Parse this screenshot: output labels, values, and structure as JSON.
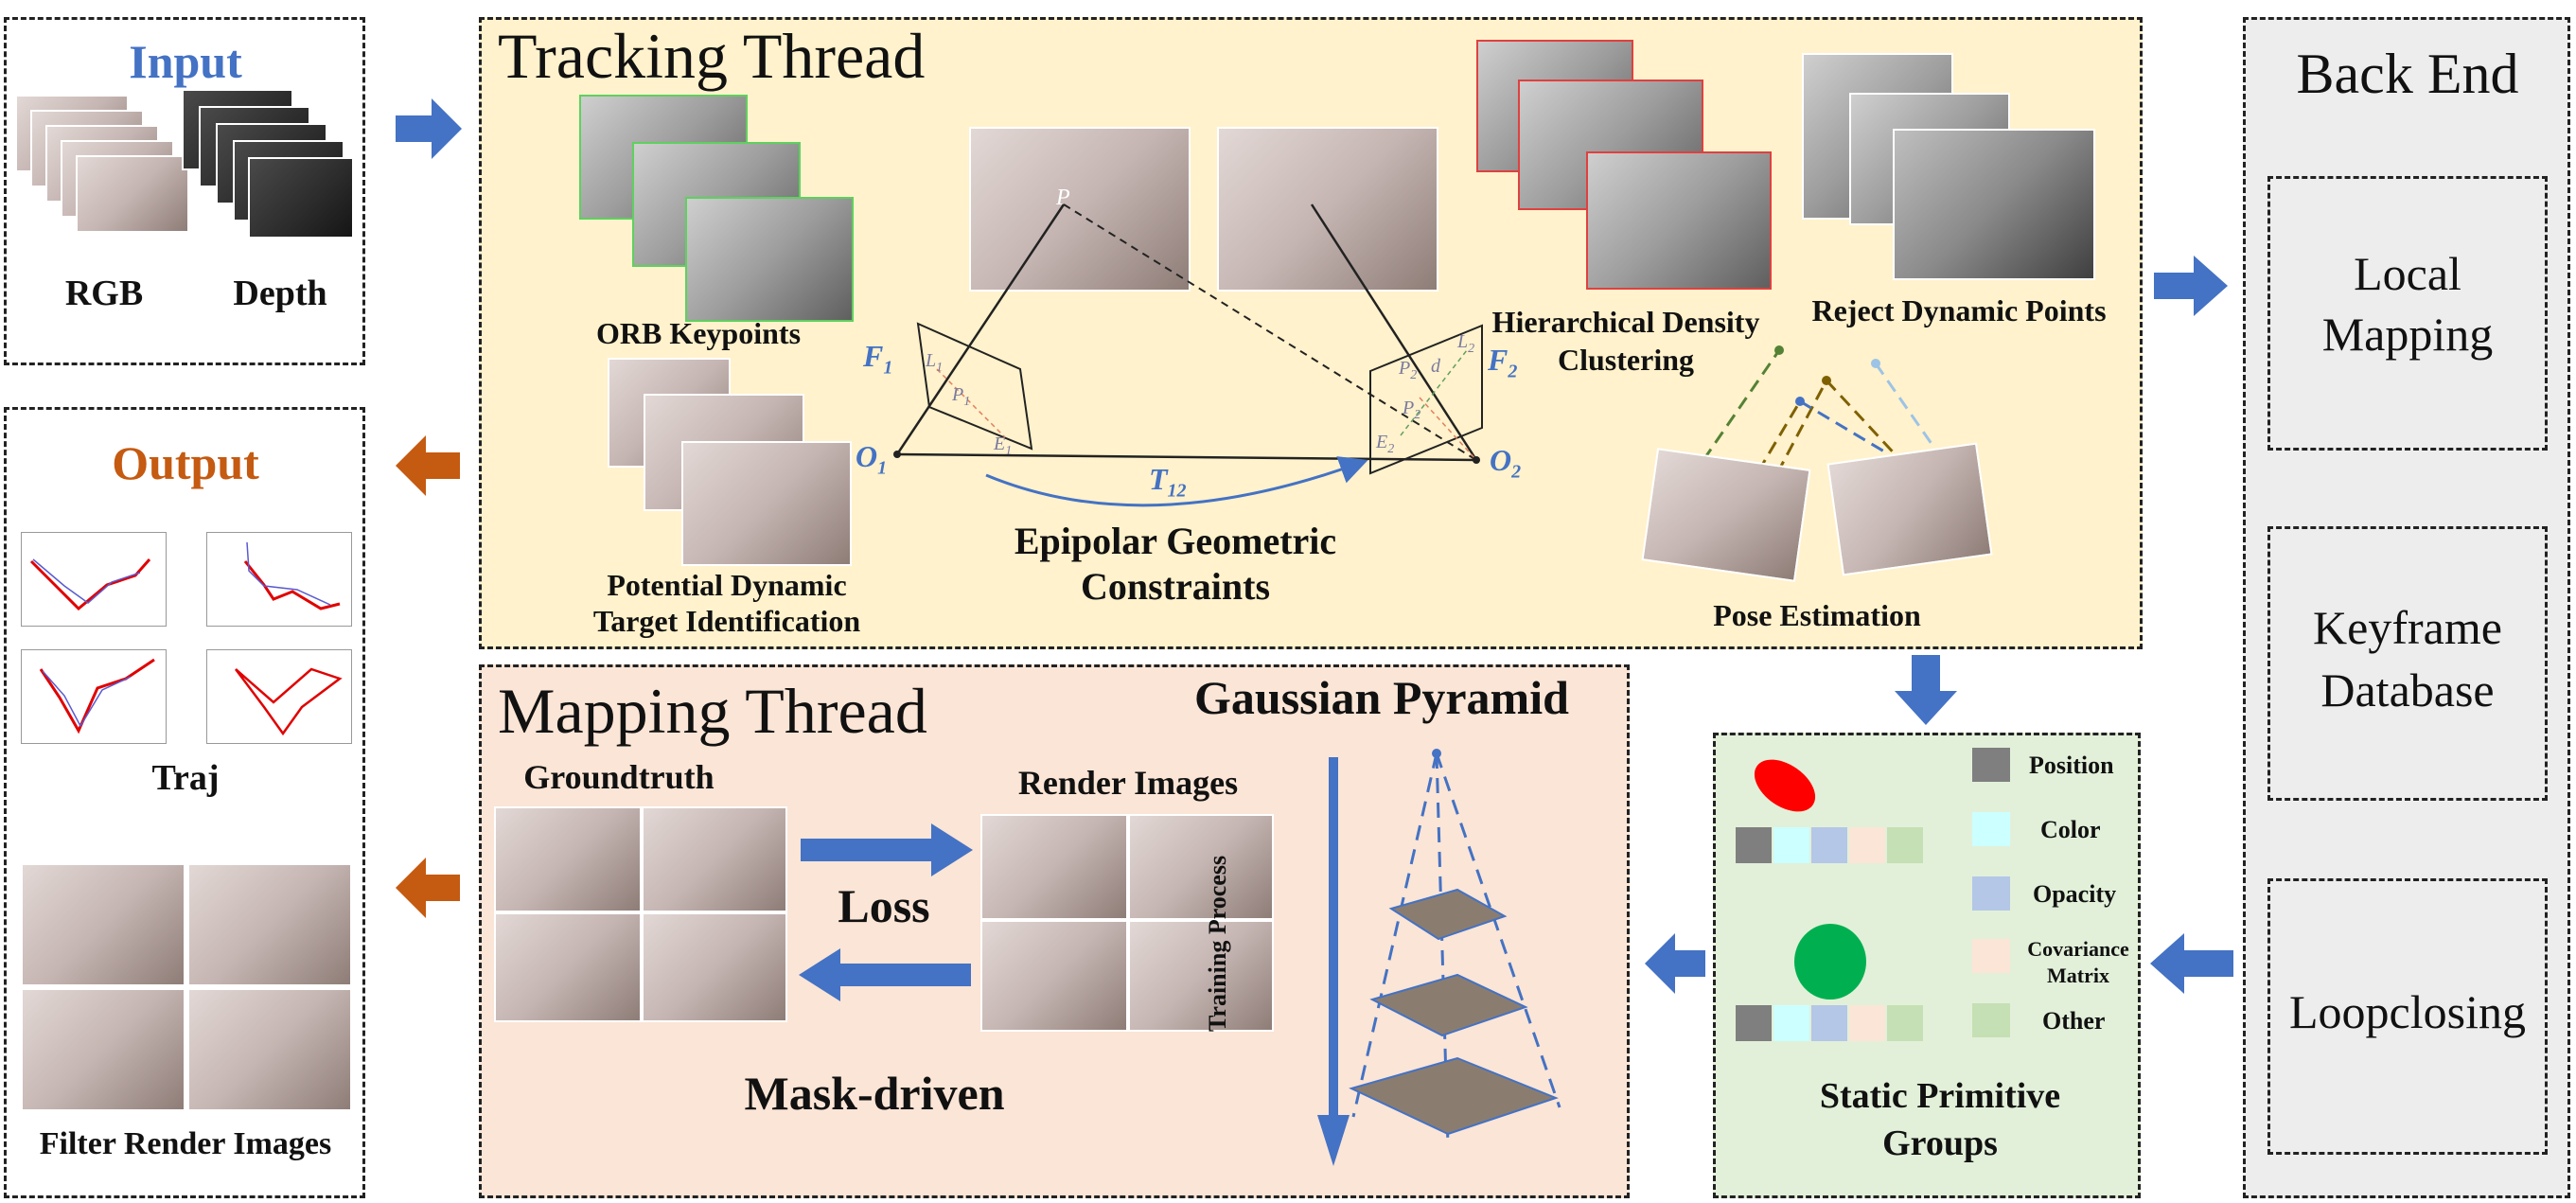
{
  "input": {
    "title": "Input",
    "rgb_label": "RGB",
    "depth_label": "Depth"
  },
  "output": {
    "title": "Output",
    "traj_label": "Traj",
    "filter_label": "Filter Render Images"
  },
  "tracking": {
    "title": "Tracking Thread",
    "orb_label": "ORB Keypoints",
    "potential_line1": "Potential Dynamic",
    "potential_line2": "Target Identification",
    "epipolar_line1": "Epipolar Geometric",
    "epipolar_line2": "Constraints",
    "hdc_line1": "Hierarchical Density",
    "hdc_line2": "Clustering",
    "reject_label": "Reject Dynamic Points",
    "pose_label": "Pose Estimation",
    "geometry_labels": {
      "F1": "F",
      "F1_sub": "1",
      "F2": "F",
      "F2_sub": "2",
      "O1": "O",
      "O1_sub": "1",
      "O2": "O",
      "O2_sub": "2",
      "T12": "T",
      "T12_sub": "12",
      "P": "P",
      "L1": "L",
      "L1_sub": "1",
      "L2": "L",
      "L2_sub": "2",
      "p1": "P",
      "p1_sub": "1",
      "p2a": "P",
      "p2a_sub": "2",
      "p2b": "P",
      "p2b_sub": "2",
      "E1": "E",
      "E1_sub": "1",
      "E2": "E",
      "E2_sub": "2",
      "d": "d"
    }
  },
  "mapping": {
    "title": "Mapping Thread",
    "pyramid_label": "Gaussian Pyramid",
    "groundtruth_label": "Groundtruth",
    "render_label": "Render Images",
    "loss_label": "Loss",
    "mask_label": "Mask-driven",
    "training_label": "Training Process"
  },
  "static_groups": {
    "title_line1": "Static Primitive",
    "title_line2": "Groups",
    "legend": [
      {
        "label": "Position",
        "color": "#7f7f7f"
      },
      {
        "label": "Color",
        "color": "#ccffff"
      },
      {
        "label": "Opacity",
        "color": "#b4c7e7"
      },
      {
        "label": "Covariance",
        "label2": "Matrix",
        "color": "#fbe5d6"
      },
      {
        "label": "Other",
        "color": "#c5e0b4"
      }
    ]
  },
  "backend": {
    "title": "Back End",
    "local_line1": "Local",
    "local_line2": "Mapping",
    "keyframe_line1": "Keyframe",
    "keyframe_line2": "Database",
    "loop_label": "Loopclosing"
  },
  "colors": {
    "blue_arrow": "#4472c4",
    "orange_arrow": "#c55a11",
    "tracking_bg": "#fff2cc",
    "mapping_bg": "#fbe5d6",
    "static_bg": "#e2f0d9",
    "backend_bg": "#ededed",
    "input_title": "#4472c4",
    "output_title": "#c55a11",
    "ellipse_red": "#ff0000",
    "ellipse_green": "#00b050"
  }
}
